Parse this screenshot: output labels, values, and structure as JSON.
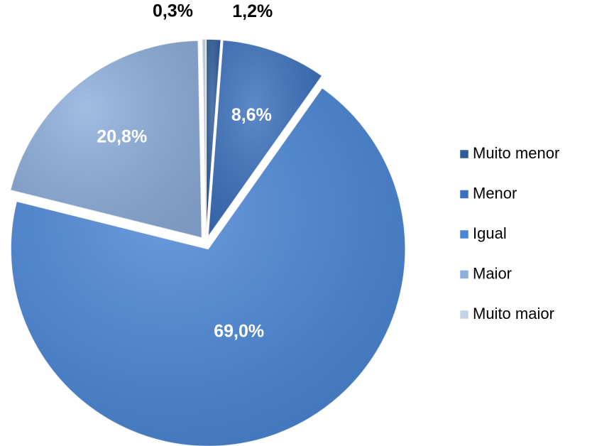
{
  "chart_data": {
    "type": "pie",
    "categories": [
      "Muito menor",
      "Menor",
      "Igual",
      "Maior",
      "Muito maior"
    ],
    "values": [
      1.2,
      8.6,
      69.0,
      20.8,
      0.3
    ],
    "value_labels": [
      "1,2%",
      "8,6%",
      "69,0%",
      "20,8%",
      "0,3%"
    ],
    "colors": [
      "#2e5c9a",
      "#3a70bd",
      "#4a86d6",
      "#8eaedc",
      "#c3d2e8"
    ],
    "legend": "right"
  }
}
